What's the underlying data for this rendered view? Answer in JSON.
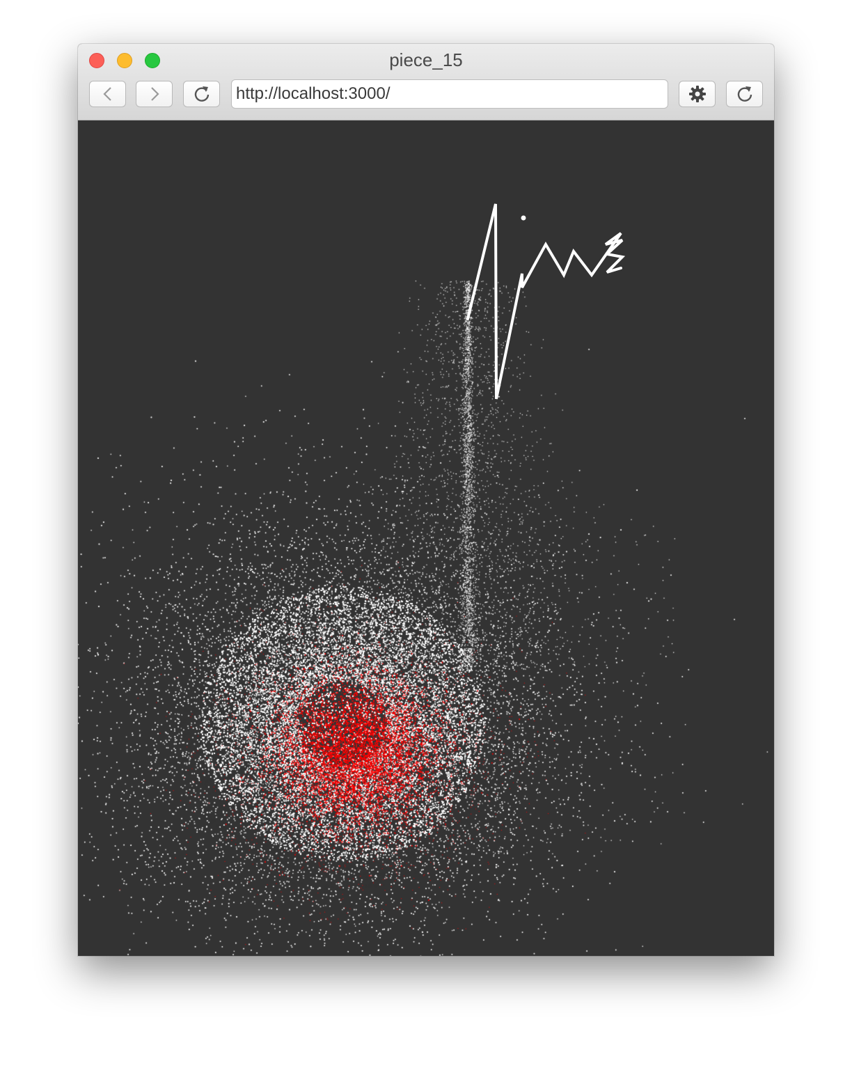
{
  "window": {
    "title": "piece_15"
  },
  "toolbar": {
    "url": "http://localhost:3000/",
    "back_icon": "chevron-left-icon",
    "forward_icon": "chevron-right-icon",
    "reload_icon": "reload-icon",
    "settings_icon": "gear-icon"
  },
  "canvas": {
    "background": "#333333",
    "particle_colors": [
      "#ffffff",
      "#ff0000"
    ]
  }
}
